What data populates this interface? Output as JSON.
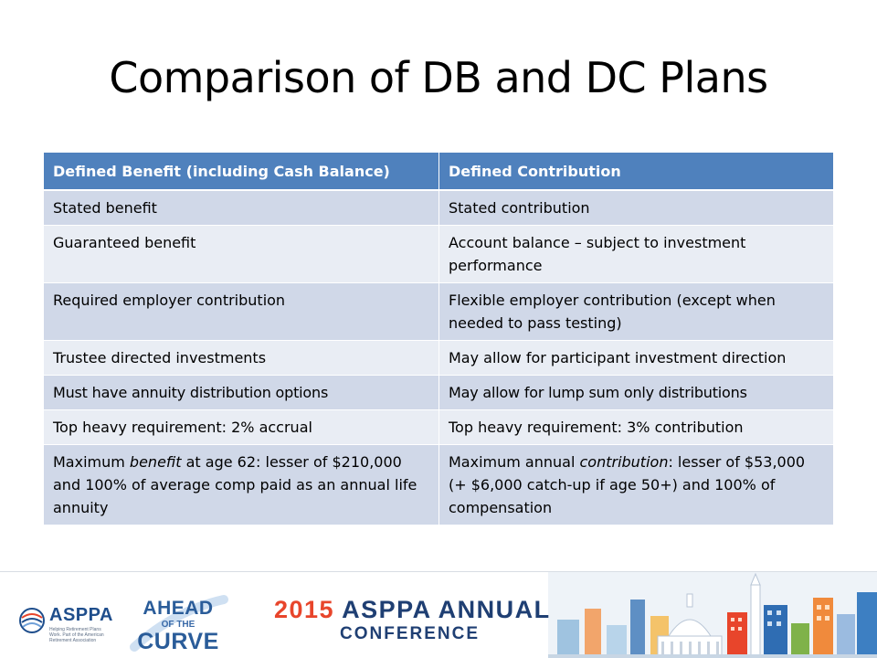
{
  "slide": {
    "title": "Comparison of DB and DC Plans"
  },
  "table": {
    "headers": [
      "Defined Benefit (including Cash Balance)",
      "Defined Contribution"
    ],
    "rows": [
      {
        "db": "Stated benefit",
        "dc": "Stated contribution"
      },
      {
        "db": "Guaranteed benefit",
        "dc": "Account balance – subject to investment performance"
      },
      {
        "db": "Required employer contribution",
        "dc": "Flexible employer contribution (except when needed to pass testing)"
      },
      {
        "db": "Trustee directed investments",
        "dc": "May allow for participant investment direction"
      },
      {
        "db": "Must have annuity distribution options",
        "dc": "May allow for lump sum only distributions"
      },
      {
        "db": "Top heavy requirement: 2% accrual",
        "dc": "Top heavy requirement: 3% contribution"
      },
      {
        "db_prefix": "Maximum ",
        "db_emphasis": "benefit",
        "db_suffix": " at age 62: lesser of $210,000 and 100% of average comp paid as an annual life annuity",
        "dc_prefix": "Maximum annual ",
        "dc_emphasis": "contribution",
        "dc_suffix": ": lesser of $53,000  (+ $6,000 catch-up if age 50+) and 100% of compensation"
      }
    ]
  },
  "footer": {
    "asppa_logo": "ASPPA",
    "asppa_tagline": "Helping Retirement Plans Work. Part of the American Retirement Association",
    "ahead_logo": {
      "line1": "AHEAD",
      "line2": "OF THE",
      "line3": "CURVE"
    },
    "conference_year": "2015",
    "conference_name": "ASPPA ANNUAL",
    "conference_sub": "CONFERENCE"
  },
  "colors": {
    "header_bg": "#4f81bd",
    "row_odd": "#d0d8e8",
    "row_even": "#e9edf4",
    "brand_blue": "#1f3f73",
    "brand_orange": "#e8452b"
  },
  "icons": [
    "asppa-globe-icon",
    "capitol-skyline-illustration"
  ]
}
